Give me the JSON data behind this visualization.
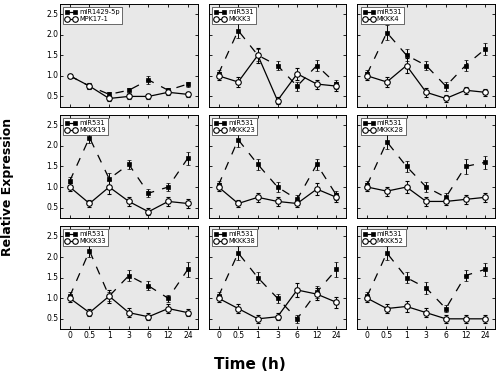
{
  "time_points": [
    0,
    0.5,
    1,
    3,
    6,
    12,
    24
  ],
  "time_labels": [
    "0",
    "0.5",
    "1",
    "3",
    "6",
    "12",
    "24"
  ],
  "subplots": [
    {
      "miRNA_label": "miR1429-5p",
      "target_label": "MPK17-1",
      "miRNA_y": [
        1.0,
        0.75,
        0.55,
        0.65,
        0.9,
        0.65,
        0.8
      ],
      "target_y": [
        1.0,
        0.75,
        0.45,
        0.5,
        0.5,
        0.6,
        0.55
      ],
      "miRNA_err": [
        0.05,
        0.07,
        0.06,
        0.06,
        0.1,
        0.06,
        0.06
      ],
      "target_err": [
        0.05,
        0.07,
        0.06,
        0.06,
        0.06,
        0.06,
        0.06
      ]
    },
    {
      "miRNA_label": "miR531",
      "target_label": "MKKK3",
      "miRNA_y": [
        1.05,
        2.1,
        1.5,
        1.25,
        0.75,
        1.25,
        0.8
      ],
      "target_y": [
        1.0,
        0.85,
        1.5,
        0.4,
        1.05,
        0.8,
        0.75
      ],
      "miRNA_err": [
        0.1,
        0.18,
        0.14,
        0.11,
        0.11,
        0.14,
        0.11
      ],
      "target_err": [
        0.1,
        0.11,
        0.18,
        0.09,
        0.14,
        0.11,
        0.11
      ]
    },
    {
      "miRNA_label": "miR531",
      "target_label": "MKKK4",
      "miRNA_y": [
        1.05,
        2.05,
        1.5,
        1.25,
        0.75,
        1.25,
        1.65
      ],
      "target_y": [
        1.0,
        0.85,
        1.25,
        0.6,
        0.45,
        0.65,
        0.6
      ],
      "miRNA_err": [
        0.1,
        0.18,
        0.14,
        0.11,
        0.11,
        0.14,
        0.14
      ],
      "target_err": [
        0.1,
        0.11,
        0.18,
        0.11,
        0.09,
        0.09,
        0.09
      ]
    },
    {
      "miRNA_label": "miR531",
      "target_label": "MKKK19",
      "miRNA_y": [
        1.15,
        2.2,
        1.2,
        1.55,
        0.85,
        1.0,
        1.7
      ],
      "target_y": [
        1.0,
        0.6,
        1.0,
        0.65,
        0.4,
        0.65,
        0.6
      ],
      "miRNA_err": [
        0.1,
        0.14,
        0.14,
        0.11,
        0.09,
        0.09,
        0.16
      ],
      "target_err": [
        0.09,
        0.09,
        0.18,
        0.11,
        0.09,
        0.11,
        0.11
      ]
    },
    {
      "miRNA_label": "miR531",
      "target_label": "MKKK23",
      "miRNA_y": [
        1.05,
        2.15,
        1.55,
        1.0,
        0.7,
        1.55,
        0.8
      ],
      "target_y": [
        1.0,
        0.6,
        0.75,
        0.65,
        0.6,
        0.95,
        0.75
      ],
      "miRNA_err": [
        0.1,
        0.18,
        0.14,
        0.11,
        0.11,
        0.14,
        0.11
      ],
      "target_err": [
        0.09,
        0.09,
        0.11,
        0.11,
        0.09,
        0.14,
        0.11
      ]
    },
    {
      "miRNA_label": "miR531",
      "target_label": "MKKK28",
      "miRNA_y": [
        1.05,
        2.1,
        1.5,
        1.0,
        0.75,
        1.5,
        1.6
      ],
      "target_y": [
        1.0,
        0.9,
        1.0,
        0.65,
        0.65,
        0.7,
        0.75
      ],
      "miRNA_err": [
        0.1,
        0.18,
        0.14,
        0.11,
        0.11,
        0.18,
        0.16
      ],
      "target_err": [
        0.09,
        0.11,
        0.14,
        0.11,
        0.09,
        0.11,
        0.11
      ]
    },
    {
      "miRNA_label": "miR531",
      "target_label": "MKKK33",
      "miRNA_y": [
        1.05,
        2.15,
        1.05,
        1.55,
        1.3,
        1.0,
        1.7
      ],
      "target_y": [
        1.0,
        0.65,
        1.05,
        0.65,
        0.55,
        0.75,
        0.65
      ],
      "miRNA_err": [
        0.1,
        0.16,
        0.11,
        0.14,
        0.11,
        0.09,
        0.18
      ],
      "target_err": [
        0.09,
        0.09,
        0.16,
        0.11,
        0.09,
        0.11,
        0.09
      ]
    },
    {
      "miRNA_label": "miR531",
      "target_label": "MKKK38",
      "miRNA_y": [
        1.05,
        2.1,
        1.5,
        1.0,
        0.5,
        1.15,
        1.7
      ],
      "target_y": [
        1.0,
        0.75,
        0.5,
        0.55,
        1.2,
        1.1,
        0.9
      ],
      "miRNA_err": [
        0.1,
        0.16,
        0.14,
        0.11,
        0.09,
        0.14,
        0.18
      ],
      "target_err": [
        0.09,
        0.11,
        0.09,
        0.09,
        0.16,
        0.14,
        0.14
      ]
    },
    {
      "miRNA_label": "miR531",
      "target_label": "MKKK52",
      "miRNA_y": [
        1.05,
        2.1,
        1.5,
        1.25,
        0.75,
        1.55,
        1.7
      ],
      "target_y": [
        1.0,
        0.75,
        0.8,
        0.65,
        0.5,
        0.5,
        0.5
      ],
      "miRNA_err": [
        0.1,
        0.16,
        0.14,
        0.14,
        0.09,
        0.14,
        0.16
      ],
      "target_err": [
        0.09,
        0.11,
        0.14,
        0.11,
        0.09,
        0.09,
        0.09
      ]
    }
  ],
  "ylim": [
    0.25,
    2.75
  ],
  "yticks": [
    0.5,
    1.0,
    1.5,
    2.0,
    2.5
  ],
  "xlabel": "Time (h)",
  "ylabel": "Relative Expression",
  "figure_width": 5.0,
  "figure_height": 3.74,
  "dpi": 100,
  "bg_color": "#e8e8e8"
}
